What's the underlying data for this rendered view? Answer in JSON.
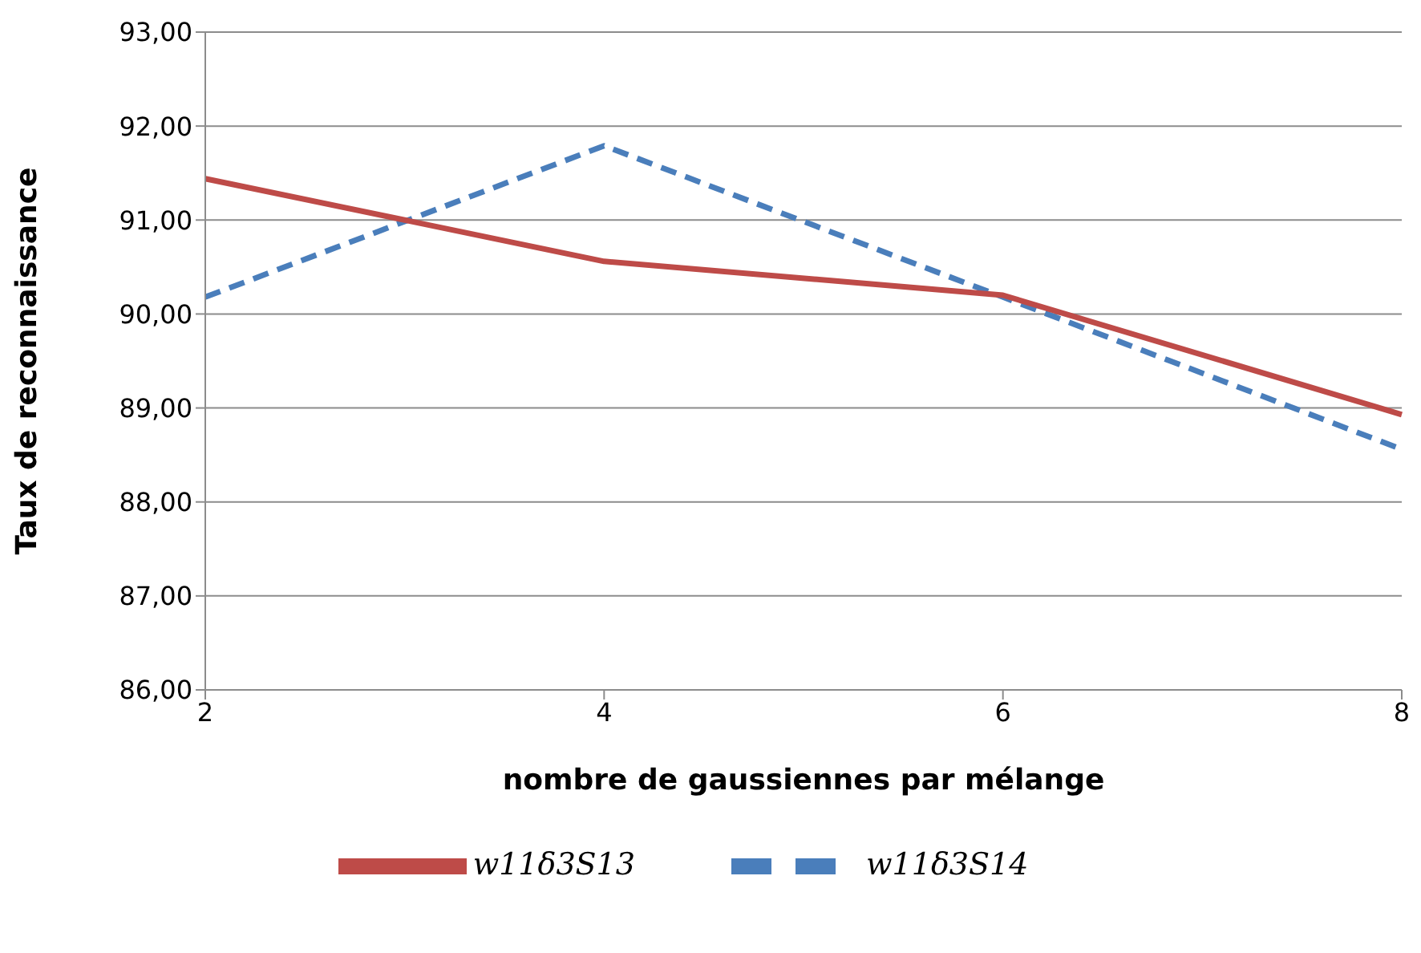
{
  "chart_data": {
    "type": "line",
    "xlabel": "nombre de gaussiennes par mélange",
    "ylabel": "Taux de reconnaissance",
    "categories": [
      "2",
      "4",
      "6",
      "8"
    ],
    "series": [
      {
        "name": "w11δ3S14",
        "color": "#4a7ebb",
        "line_style": "dashed",
        "values": [
          90.18,
          91.79,
          90.18,
          88.56
        ]
      },
      {
        "name": "w11δ3S13",
        "color": "#be4b48",
        "line_style": "solid",
        "values": [
          91.44,
          90.56,
          90.2,
          88.93
        ]
      }
    ],
    "ylim": [
      86,
      93
    ],
    "yticks": [
      {
        "value": 86,
        "label": "86,00"
      },
      {
        "value": 87,
        "label": "87,00"
      },
      {
        "value": 88,
        "label": "88,00"
      },
      {
        "value": 89,
        "label": "89,00"
      },
      {
        "value": 90,
        "label": "90,00"
      },
      {
        "value": 91,
        "label": "91,00"
      },
      {
        "value": 92,
        "label": "92,00"
      },
      {
        "value": 93,
        "label": "93,00"
      }
    ],
    "grid": "y",
    "legend": "bottom",
    "marker": "none"
  }
}
